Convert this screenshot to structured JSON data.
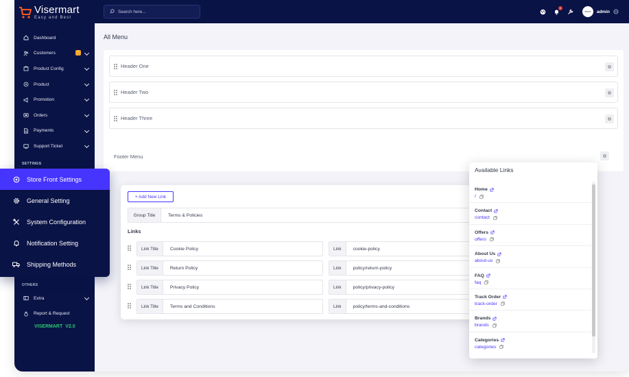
{
  "brand": {
    "name_part1": "Viser",
    "name_part2": "mart",
    "tagline": "Easy and Best"
  },
  "topbar": {
    "search_placeholder": "Search here...",
    "notification_count": "1",
    "avatar_text": "admin",
    "user_name": "admin"
  },
  "sidebar": {
    "items": [
      {
        "label": "Dashboard",
        "icon": "home-icon",
        "chevron": false
      },
      {
        "label": "Customers",
        "icon": "users-icon",
        "chevron": true,
        "badge": "!"
      },
      {
        "label": "Product Config",
        "icon": "box-icon",
        "chevron": true
      },
      {
        "label": "Product",
        "icon": "product-icon",
        "chevron": true
      },
      {
        "label": "Promotion",
        "icon": "megaphone-icon",
        "chevron": true
      },
      {
        "label": "Orders",
        "icon": "orders-icon",
        "chevron": true
      },
      {
        "label": "Payments",
        "icon": "payments-icon",
        "chevron": true
      },
      {
        "label": "Support Ticket",
        "icon": "ticket-icon",
        "chevron": true
      }
    ],
    "section_settings": "SETTINGS",
    "section_others": "OTHERS",
    "others": [
      {
        "label": "Extra",
        "icon": "extra-icon",
        "chevron": true
      },
      {
        "label": "Report & Request",
        "icon": "bug-icon",
        "chevron": false
      }
    ],
    "version_name": "VISERMART",
    "version_number": "V2.0"
  },
  "float_menu": {
    "items": [
      {
        "label": "Store Front Settings",
        "icon": "store-settings-icon",
        "active": true
      },
      {
        "label": "General Setting",
        "icon": "gear-icon",
        "active": false
      },
      {
        "label": "System Configuration",
        "icon": "tools-icon",
        "active": false
      },
      {
        "label": "Notification Setting",
        "icon": "bell-icon",
        "active": false
      },
      {
        "label": "Shipping Methods",
        "icon": "truck-icon",
        "active": false
      }
    ]
  },
  "page": {
    "title": "All Menu",
    "header_menus": [
      "Header One",
      "Header Two",
      "Header Three"
    ],
    "footer_menu": "Footer Menu"
  },
  "links_editor": {
    "add_button": "+ Add New Link",
    "group_title_label": "Group Title",
    "group_title_value": "Terms & Policies",
    "links_heading": "Links",
    "link_title_label": "Link Title",
    "link_label": "Link",
    "rows": [
      {
        "title": "Cookie Policy",
        "link": "cookie-policy"
      },
      {
        "title": "Return Policy",
        "link": "policy/return-policy"
      },
      {
        "title": "Privacy Policy",
        "link": "policy/privacy-policy"
      },
      {
        "title": "Terms and Conditions",
        "link": "policy/terms-and-conditions"
      }
    ]
  },
  "available_links": {
    "title": "Available Links",
    "items": [
      {
        "name": "Home",
        "url": "/"
      },
      {
        "name": "Contact",
        "url": "contact"
      },
      {
        "name": "Offers",
        "url": "offers"
      },
      {
        "name": "About Us",
        "url": "about-us"
      },
      {
        "name": "FAQ",
        "url": "faq"
      },
      {
        "name": "Track Order",
        "url": "track-order"
      },
      {
        "name": "Brands",
        "url": "brands"
      },
      {
        "name": "Categories",
        "url": "categories"
      }
    ]
  },
  "colors": {
    "sidebar": "#0a1346",
    "accent": "#4634ff",
    "background": "#f3f3f9",
    "version_green": "#28c76f"
  }
}
